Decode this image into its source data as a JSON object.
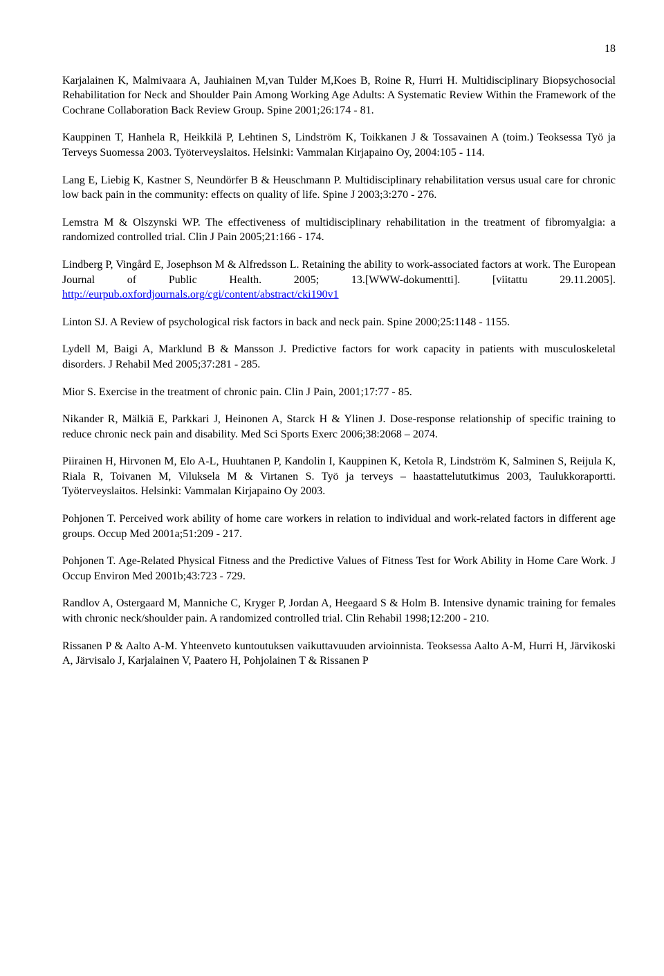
{
  "page_number": "18",
  "references": [
    {
      "text": "Karjalainen K, Malmivaara A, Jauhiainen M,van Tulder M,Koes B, Roine R, Hurri H. Multidisciplinary Biopsychosocial Rehabilitation for Neck and Shoulder Pain Among Working Age Adults: A Systematic Review Within the Framework of the Cochrane Collaboration Back Review Group. Spine 2001;26:174 - 81."
    },
    {
      "text": "Kauppinen T, Hanhela R, Heikkilä P, Lehtinen S, Lindström K, Toikkanen J & Tossavainen A (toim.) Teoksessa Työ ja Terveys Suomessa 2003. Työterveyslaitos. Helsinki: Vammalan Kirjapaino Oy, 2004:105 - 114."
    },
    {
      "text": "Lang E, Liebig K, Kastner S, Neundörfer B & Heuschmann P. Multidisciplinary rehabilitation versus usual care for chronic low back pain in the community: effects on quality of life. Spine J 2003;3:270 - 276."
    },
    {
      "text": "Lemstra M & Olszynski WP. The effectiveness of multidisciplinary rehabilitation in the treatment of fibromyalgia: a randomized controlled trial. Clin J Pain 2005;21:166 - 174."
    },
    {
      "pre": "Lindberg P, Vingård E, Josephson M & Alfredsson L. Retaining the ability to work-associated factors at work. The European Journal of Public Health. 2005; 13.[WWW-dokumentti]. [viitattu 29.11.2005]. ",
      "link": "http://eurpub.oxfordjournals.org/cgi/content/abstract/cki190v1",
      "post": ""
    },
    {
      "text": "Linton SJ. A Review of psychological risk factors in back and neck pain. Spine 2000;25:1148 - 1155."
    },
    {
      "text": "Lydell M, Baigi A, Marklund B & Mansson J. Predictive factors for work capacity in patients with musculoskeletal disorders. J Rehabil Med 2005;37:281 - 285."
    },
    {
      "text": "Mior S. Exercise in the treatment of chronic pain. Clin J Pain, 2001;17:77 - 85."
    },
    {
      "text": "Nikander R, Mälkiä E, Parkkari J, Heinonen A, Starck H & Ylinen J. Dose-response relationship of specific training to reduce chronic neck pain and disability. Med Sci Sports Exerc 2006;38:2068 – 2074."
    },
    {
      "text": "Piirainen H, Hirvonen M, Elo A-L, Huuhtanen P, Kandolin I, Kauppinen K, Ketola R, Lindström K, Salminen S, Reijula K, Riala R, Toivanen M, Viluksela M & Virtanen S. Työ ja terveys – haastattelututkimus 2003, Taulukkoraportti. Työterveyslaitos. Helsinki: Vammalan Kirjapaino Oy 2003."
    },
    {
      "text": "Pohjonen T. Perceived work ability of home care workers in relation to individual and work-related factors in different age groups. Occup Med 2001a;51:209 - 217."
    },
    {
      "text": "Pohjonen T. Age-Related Physical Fitness and the Predictive Values of Fitness Test for Work Ability in Home Care Work. J Occup Environ Med 2001b;43:723 - 729."
    },
    {
      "text": "Randlov A, Ostergaard M, Manniche C, Kryger P, Jordan A, Heegaard S & Holm B. Intensive dynamic training for females with chronic neck/shoulder pain. A randomized controlled trial. Clin Rehabil 1998;12:200 - 210."
    },
    {
      "text": "Rissanen P & Aalto A-M. Yhteenveto kuntoutuksen vaikuttavuuden arvioinnista. Teoksessa Aalto A-M, Hurri H, Järvikoski A, Järvisalo J, Karjalainen V, Paatero H, Pohjolainen T & Rissanen P"
    }
  ]
}
